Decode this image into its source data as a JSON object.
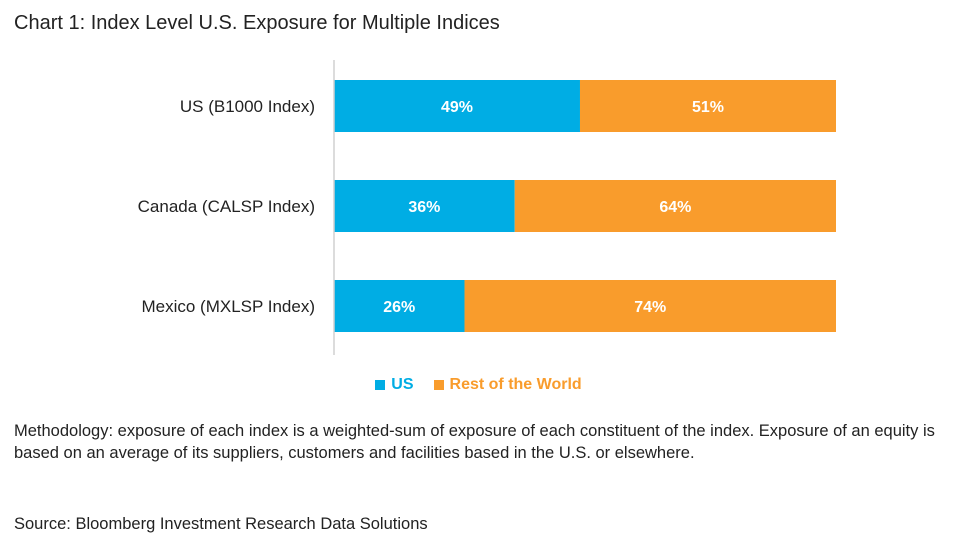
{
  "title": "Chart 1: Index Level U.S. Exposure for Multiple Indices",
  "chart_data": {
    "type": "bar",
    "orientation": "horizontal",
    "stacked": true,
    "categories": [
      "US (B1000 Index)",
      "Canada (CALSP Index)",
      "Mexico (MXLSP Index)"
    ],
    "series": [
      {
        "name": "US",
        "values": [
          49,
          36,
          26
        ],
        "labels": [
          "49%",
          "36%",
          "26%"
        ],
        "color": "#00ADE4"
      },
      {
        "name": "Rest of the World",
        "values": [
          51,
          64,
          74
        ],
        "labels": [
          "51%",
          "64%",
          "74%"
        ],
        "color": "#F99C2C"
      }
    ],
    "xlim": [
      0,
      100
    ],
    "unit": "%",
    "legend_position": "bottom"
  },
  "legend": {
    "us_label": "US",
    "row_label": "Rest of the World"
  },
  "methodology": "Methodology: exposure of each index is a weighted-sum of exposure of each constituent of the index. Exposure of an equity is based on an average of its suppliers, customers and facilities based in the U.S. or elsewhere.",
  "source": "Source: Bloomberg Investment Research Data Solutions"
}
